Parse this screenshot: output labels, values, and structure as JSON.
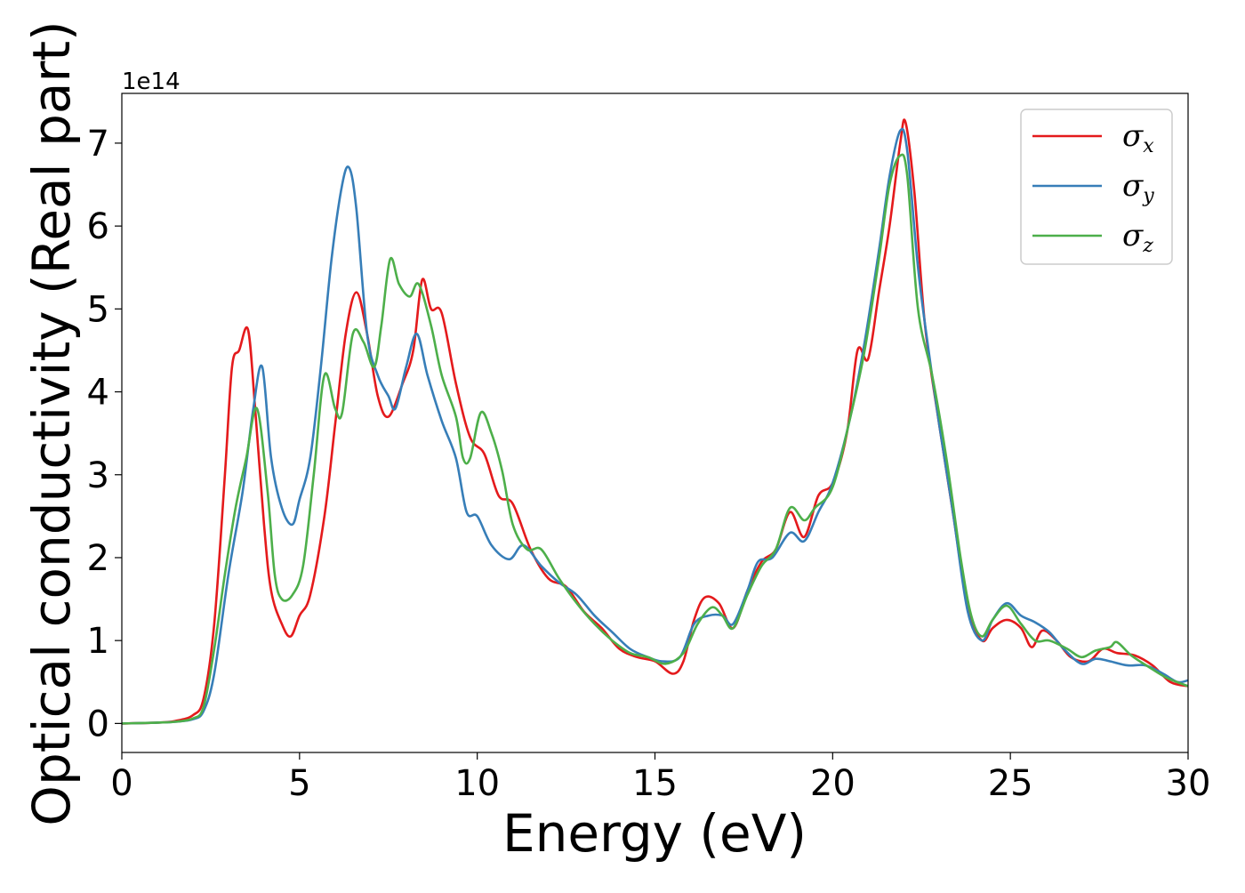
{
  "chart_data": {
    "type": "line",
    "xlabel": "Energy (eV)",
    "ylabel": "Optical conductivity (Real part)",
    "y_offset_label": "1e14",
    "xlim": [
      0,
      30
    ],
    "ylim": [
      -0.35,
      7.6
    ],
    "x_ticks": [
      0,
      5,
      10,
      15,
      20,
      25,
      30
    ],
    "y_ticks": [
      0,
      1,
      2,
      3,
      4,
      5,
      6,
      7
    ],
    "grid": false,
    "legend_position": "top-right",
    "series": [
      {
        "name": "σx",
        "symbol": "σ",
        "subscript": "x",
        "color": "#e41a1c",
        "points": [
          [
            0,
            0
          ],
          [
            1,
            0.01
          ],
          [
            1.5,
            0.03
          ],
          [
            2,
            0.1
          ],
          [
            2.3,
            0.3
          ],
          [
            2.6,
            1.2
          ],
          [
            2.9,
            3.0
          ],
          [
            3.1,
            4.3
          ],
          [
            3.3,
            4.5
          ],
          [
            3.55,
            4.75
          ],
          [
            3.75,
            3.8
          ],
          [
            4.0,
            2.4
          ],
          [
            4.2,
            1.6
          ],
          [
            4.5,
            1.2
          ],
          [
            4.75,
            1.05
          ],
          [
            5.0,
            1.3
          ],
          [
            5.3,
            1.55
          ],
          [
            5.7,
            2.5
          ],
          [
            6.0,
            3.6
          ],
          [
            6.3,
            4.7
          ],
          [
            6.6,
            5.2
          ],
          [
            6.9,
            4.7
          ],
          [
            7.2,
            3.95
          ],
          [
            7.5,
            3.7
          ],
          [
            7.9,
            4.1
          ],
          [
            8.2,
            4.5
          ],
          [
            8.45,
            5.35
          ],
          [
            8.7,
            5.0
          ],
          [
            9.0,
            4.95
          ],
          [
            9.4,
            4.1
          ],
          [
            9.8,
            3.45
          ],
          [
            10.2,
            3.25
          ],
          [
            10.6,
            2.75
          ],
          [
            11.0,
            2.65
          ],
          [
            11.5,
            2.1
          ],
          [
            12.0,
            1.75
          ],
          [
            12.5,
            1.65
          ],
          [
            13.0,
            1.35
          ],
          [
            13.5,
            1.15
          ],
          [
            14.0,
            0.9
          ],
          [
            14.5,
            0.8
          ],
          [
            15.0,
            0.75
          ],
          [
            15.5,
            0.6
          ],
          [
            15.8,
            0.75
          ],
          [
            16.1,
            1.25
          ],
          [
            16.4,
            1.52
          ],
          [
            16.8,
            1.45
          ],
          [
            17.2,
            1.15
          ],
          [
            17.6,
            1.6
          ],
          [
            18.0,
            1.95
          ],
          [
            18.4,
            2.1
          ],
          [
            18.8,
            2.55
          ],
          [
            19.2,
            2.25
          ],
          [
            19.6,
            2.75
          ],
          [
            20.0,
            2.9
          ],
          [
            20.4,
            3.5
          ],
          [
            20.7,
            4.5
          ],
          [
            21.0,
            4.4
          ],
          [
            21.3,
            5.2
          ],
          [
            21.6,
            6.0
          ],
          [
            21.9,
            7.0
          ],
          [
            22.05,
            7.25
          ],
          [
            22.3,
            6.4
          ],
          [
            22.6,
            4.8
          ],
          [
            23.0,
            3.6
          ],
          [
            23.4,
            2.5
          ],
          [
            23.8,
            1.4
          ],
          [
            24.2,
            1.0
          ],
          [
            24.5,
            1.15
          ],
          [
            24.9,
            1.25
          ],
          [
            25.3,
            1.15
          ],
          [
            25.6,
            0.92
          ],
          [
            25.9,
            1.12
          ],
          [
            26.3,
            1.0
          ],
          [
            26.7,
            0.8
          ],
          [
            27.2,
            0.75
          ],
          [
            27.6,
            0.9
          ],
          [
            28.0,
            0.85
          ],
          [
            28.5,
            0.82
          ],
          [
            29.0,
            0.7
          ],
          [
            29.5,
            0.5
          ],
          [
            30.0,
            0.45
          ]
        ]
      },
      {
        "name": "σy",
        "symbol": "σ",
        "subscript": "y",
        "color": "#377eb8",
        "points": [
          [
            0,
            0
          ],
          [
            1,
            0.01
          ],
          [
            1.5,
            0.02
          ],
          [
            2,
            0.05
          ],
          [
            2.3,
            0.15
          ],
          [
            2.6,
            0.6
          ],
          [
            3.0,
            1.8
          ],
          [
            3.4,
            2.8
          ],
          [
            3.7,
            3.8
          ],
          [
            3.95,
            4.3
          ],
          [
            4.2,
            3.2
          ],
          [
            4.5,
            2.6
          ],
          [
            4.8,
            2.4
          ],
          [
            5.0,
            2.7
          ],
          [
            5.3,
            3.2
          ],
          [
            5.6,
            4.3
          ],
          [
            5.9,
            5.6
          ],
          [
            6.2,
            6.5
          ],
          [
            6.4,
            6.7
          ],
          [
            6.6,
            6.2
          ],
          [
            6.9,
            4.7
          ],
          [
            7.2,
            4.2
          ],
          [
            7.5,
            3.95
          ],
          [
            7.7,
            3.8
          ],
          [
            8.0,
            4.3
          ],
          [
            8.3,
            4.7
          ],
          [
            8.6,
            4.2
          ],
          [
            9.0,
            3.65
          ],
          [
            9.4,
            3.2
          ],
          [
            9.7,
            2.55
          ],
          [
            10.0,
            2.5
          ],
          [
            10.4,
            2.15
          ],
          [
            10.9,
            1.98
          ],
          [
            11.3,
            2.15
          ],
          [
            11.8,
            1.9
          ],
          [
            12.3,
            1.7
          ],
          [
            12.8,
            1.55
          ],
          [
            13.3,
            1.3
          ],
          [
            13.8,
            1.1
          ],
          [
            14.3,
            0.9
          ],
          [
            14.8,
            0.8
          ],
          [
            15.2,
            0.75
          ],
          [
            15.7,
            0.8
          ],
          [
            16.1,
            1.2
          ],
          [
            16.5,
            1.3
          ],
          [
            16.9,
            1.3
          ],
          [
            17.2,
            1.2
          ],
          [
            17.6,
            1.6
          ],
          [
            17.9,
            1.95
          ],
          [
            18.3,
            2.0
          ],
          [
            18.8,
            2.3
          ],
          [
            19.2,
            2.2
          ],
          [
            19.6,
            2.55
          ],
          [
            20.0,
            2.9
          ],
          [
            20.5,
            3.7
          ],
          [
            20.9,
            4.6
          ],
          [
            21.3,
            5.7
          ],
          [
            21.6,
            6.6
          ],
          [
            21.9,
            7.15
          ],
          [
            22.1,
            6.9
          ],
          [
            22.4,
            5.5
          ],
          [
            22.7,
            4.5
          ],
          [
            23.0,
            3.6
          ],
          [
            23.4,
            2.5
          ],
          [
            23.8,
            1.35
          ],
          [
            24.2,
            1.0
          ],
          [
            24.5,
            1.25
          ],
          [
            24.9,
            1.45
          ],
          [
            25.3,
            1.3
          ],
          [
            25.7,
            1.22
          ],
          [
            26.1,
            1.1
          ],
          [
            26.5,
            0.9
          ],
          [
            27.0,
            0.72
          ],
          [
            27.4,
            0.78
          ],
          [
            27.8,
            0.75
          ],
          [
            28.3,
            0.7
          ],
          [
            28.8,
            0.7
          ],
          [
            29.3,
            0.6
          ],
          [
            29.7,
            0.5
          ],
          [
            30.0,
            0.52
          ]
        ]
      },
      {
        "name": "σz",
        "symbol": "σ",
        "subscript": "z",
        "color": "#4daf4a",
        "points": [
          [
            0,
            0
          ],
          [
            1,
            0.01
          ],
          [
            1.5,
            0.02
          ],
          [
            2,
            0.06
          ],
          [
            2.3,
            0.2
          ],
          [
            2.6,
            0.9
          ],
          [
            2.9,
            1.8
          ],
          [
            3.2,
            2.6
          ],
          [
            3.5,
            3.2
          ],
          [
            3.8,
            3.8
          ],
          [
            4.1,
            2.8
          ],
          [
            4.3,
            1.8
          ],
          [
            4.5,
            1.5
          ],
          [
            4.8,
            1.55
          ],
          [
            5.1,
            1.9
          ],
          [
            5.4,
            3.0
          ],
          [
            5.7,
            4.2
          ],
          [
            6.0,
            3.8
          ],
          [
            6.2,
            3.75
          ],
          [
            6.5,
            4.7
          ],
          [
            6.8,
            4.6
          ],
          [
            7.1,
            4.3
          ],
          [
            7.3,
            4.8
          ],
          [
            7.55,
            5.6
          ],
          [
            7.8,
            5.3
          ],
          [
            8.1,
            5.15
          ],
          [
            8.35,
            5.3
          ],
          [
            8.7,
            4.8
          ],
          [
            9.0,
            4.2
          ],
          [
            9.4,
            3.7
          ],
          [
            9.6,
            3.2
          ],
          [
            9.8,
            3.2
          ],
          [
            10.1,
            3.75
          ],
          [
            10.4,
            3.5
          ],
          [
            10.7,
            3.05
          ],
          [
            11.0,
            2.4
          ],
          [
            11.4,
            2.1
          ],
          [
            11.8,
            2.1
          ],
          [
            12.3,
            1.75
          ],
          [
            12.8,
            1.45
          ],
          [
            13.3,
            1.2
          ],
          [
            13.8,
            1.0
          ],
          [
            14.3,
            0.85
          ],
          [
            14.8,
            0.8
          ],
          [
            15.3,
            0.72
          ],
          [
            15.8,
            0.85
          ],
          [
            16.2,
            1.2
          ],
          [
            16.6,
            1.4
          ],
          [
            16.9,
            1.3
          ],
          [
            17.2,
            1.15
          ],
          [
            17.6,
            1.55
          ],
          [
            18.0,
            1.9
          ],
          [
            18.4,
            2.1
          ],
          [
            18.8,
            2.6
          ],
          [
            19.2,
            2.45
          ],
          [
            19.5,
            2.6
          ],
          [
            20.0,
            2.85
          ],
          [
            20.5,
            3.7
          ],
          [
            20.9,
            4.5
          ],
          [
            21.3,
            5.6
          ],
          [
            21.6,
            6.5
          ],
          [
            21.9,
            6.85
          ],
          [
            22.1,
            6.6
          ],
          [
            22.4,
            5.0
          ],
          [
            22.8,
            4.2
          ],
          [
            23.2,
            3.2
          ],
          [
            23.6,
            2.0
          ],
          [
            23.9,
            1.3
          ],
          [
            24.2,
            1.05
          ],
          [
            24.5,
            1.25
          ],
          [
            24.9,
            1.42
          ],
          [
            25.3,
            1.2
          ],
          [
            25.7,
            1.0
          ],
          [
            26.1,
            1.0
          ],
          [
            26.6,
            0.9
          ],
          [
            27.0,
            0.8
          ],
          [
            27.4,
            0.88
          ],
          [
            27.8,
            0.92
          ],
          [
            28.0,
            0.98
          ],
          [
            28.4,
            0.82
          ],
          [
            28.9,
            0.68
          ],
          [
            29.4,
            0.55
          ],
          [
            30.0,
            0.45
          ]
        ]
      }
    ]
  }
}
